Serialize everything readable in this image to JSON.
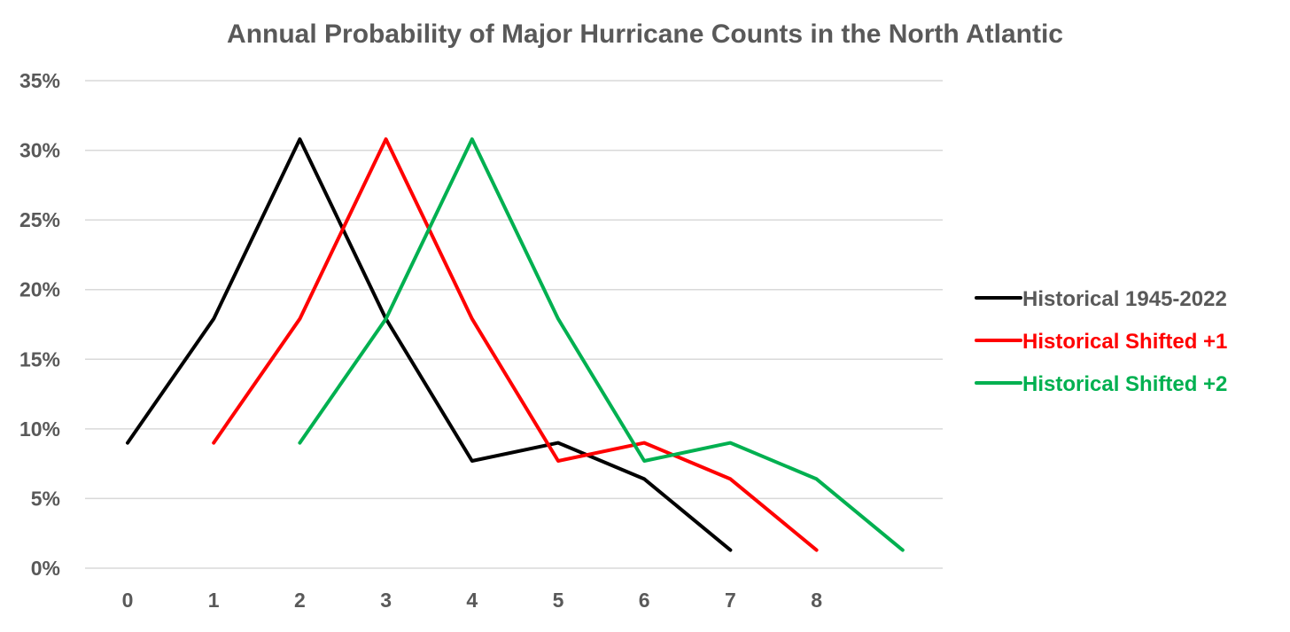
{
  "chart_data": {
    "type": "line",
    "title": "Annual Probability of Major Hurricane Counts in the North Atlantic",
    "xlabel": "",
    "ylabel": "",
    "categories": [
      "0",
      "1",
      "2",
      "3",
      "4",
      "5",
      "6",
      "7",
      "8",
      ""
    ],
    "x": [
      0,
      1,
      2,
      3,
      4,
      5,
      6,
      7,
      8,
      9
    ],
    "ylim": [
      0,
      35
    ],
    "yticks": [
      0,
      5,
      10,
      15,
      20,
      25,
      30,
      35
    ],
    "ytick_labels": [
      "0%",
      "5%",
      "10%",
      "15%",
      "20%",
      "25%",
      "30%",
      "35%"
    ],
    "grid": true,
    "legend_position": "right",
    "series": [
      {
        "name": "Historical 1945-2022",
        "color": "#000000",
        "x": [
          0,
          1,
          2,
          3,
          4,
          5,
          6,
          7
        ],
        "values": [
          9.0,
          17.9,
          30.8,
          17.9,
          7.7,
          9.0,
          6.4,
          1.3
        ]
      },
      {
        "name": "Historical Shifted +1",
        "color": "#ff0000",
        "x": [
          1,
          2,
          3,
          4,
          5,
          6,
          7,
          8
        ],
        "values": [
          9.0,
          17.9,
          30.8,
          17.9,
          7.7,
          9.0,
          6.4,
          1.3
        ]
      },
      {
        "name": "Historical Shifted +2",
        "color": "#00b050",
        "x": [
          2,
          3,
          4,
          5,
          6,
          7,
          8,
          9
        ],
        "values": [
          9.0,
          17.9,
          30.8,
          17.9,
          7.7,
          9.0,
          6.4,
          1.3
        ]
      }
    ]
  }
}
